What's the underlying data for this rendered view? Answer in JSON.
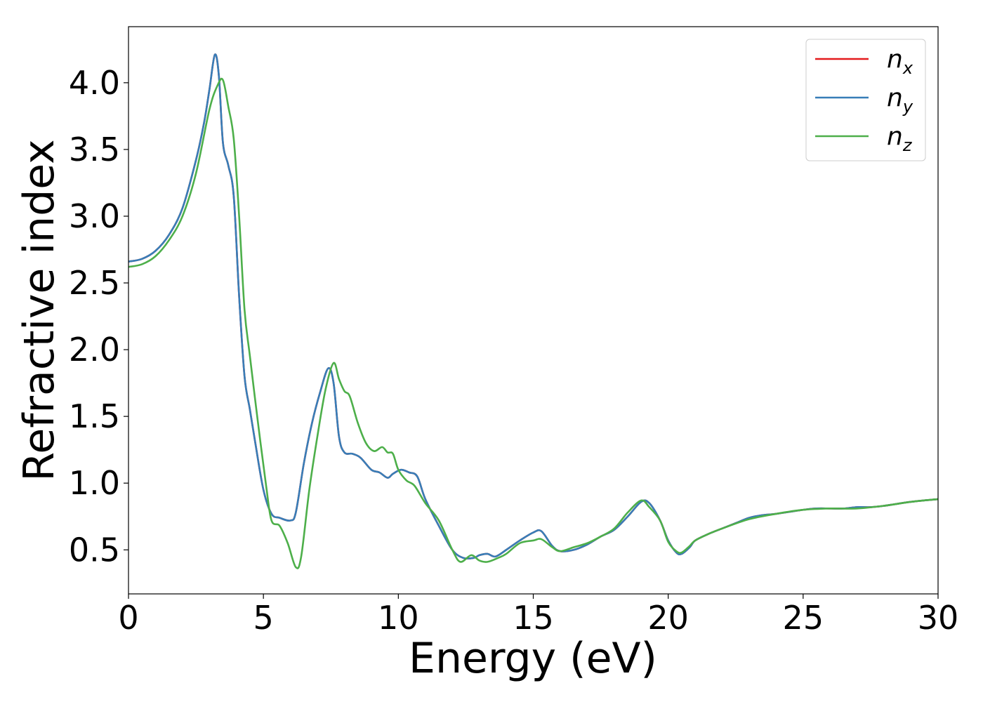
{
  "chart_data": {
    "type": "line",
    "title": "",
    "xlabel": "Energy (eV)",
    "ylabel": "Refractive index",
    "xlim": [
      0,
      30
    ],
    "ylim": [
      0.17,
      4.42
    ],
    "xticks": [
      0,
      5,
      10,
      15,
      20,
      25,
      30
    ],
    "yticks": [
      0.5,
      1.0,
      1.5,
      2.0,
      2.5,
      3.0,
      3.5,
      4.0
    ],
    "xtick_labels": [
      "0",
      "5",
      "10",
      "15",
      "20",
      "25",
      "30"
    ],
    "ytick_labels": [
      "0.5",
      "1.0",
      "1.5",
      "2.0",
      "2.5",
      "3.0",
      "3.5",
      "4.0"
    ],
    "grid": false,
    "legend_position": "top-right",
    "series": [
      {
        "name": "n_x",
        "label_base": "n",
        "label_sub": "x",
        "color": "#e41a1c",
        "x": [
          0,
          0.5,
          1,
          1.5,
          2,
          2.5,
          2.8,
          3,
          3.2,
          3.35,
          3.5,
          3.7,
          3.9,
          4.1,
          4.3,
          4.5,
          4.7,
          5,
          5.3,
          5.6,
          6,
          6.2,
          6.5,
          6.8,
          7.1,
          7.4,
          7.6,
          7.8,
          8,
          8.3,
          8.6,
          9,
          9.3,
          9.6,
          9.8,
          10.1,
          10.4,
          10.7,
          11,
          11.5,
          12,
          12.4,
          12.8,
          13,
          13.3,
          13.6,
          14,
          14.5,
          15,
          15.3,
          15.7,
          16,
          16.5,
          17,
          17.5,
          18,
          18.5,
          19,
          19.3,
          19.7,
          20,
          20.3,
          20.5,
          20.8,
          21,
          21.5,
          22,
          22.5,
          23,
          23.5,
          24,
          25,
          25.5,
          26,
          26.5,
          27,
          27.5,
          28,
          29,
          30
        ],
        "y": [
          2.66,
          2.68,
          2.74,
          2.86,
          3.06,
          3.42,
          3.7,
          3.95,
          4.21,
          4.05,
          3.55,
          3.38,
          3.15,
          2.4,
          1.8,
          1.55,
          1.3,
          0.95,
          0.77,
          0.74,
          0.72,
          0.78,
          1.15,
          1.45,
          1.68,
          1.86,
          1.75,
          1.35,
          1.23,
          1.22,
          1.19,
          1.1,
          1.08,
          1.04,
          1.07,
          1.1,
          1.08,
          1.05,
          0.88,
          0.68,
          0.5,
          0.44,
          0.44,
          0.46,
          0.47,
          0.45,
          0.5,
          0.57,
          0.63,
          0.64,
          0.53,
          0.49,
          0.5,
          0.54,
          0.6,
          0.65,
          0.75,
          0.86,
          0.85,
          0.72,
          0.57,
          0.48,
          0.47,
          0.52,
          0.57,
          0.62,
          0.66,
          0.7,
          0.74,
          0.76,
          0.77,
          0.8,
          0.81,
          0.81,
          0.81,
          0.82,
          0.82,
          0.83,
          0.86,
          0.88
        ]
      },
      {
        "name": "n_y",
        "label_base": "n",
        "label_sub": "y",
        "color": "#377eb8",
        "x": [
          0,
          0.5,
          1,
          1.5,
          2,
          2.5,
          2.8,
          3,
          3.2,
          3.35,
          3.5,
          3.7,
          3.9,
          4.1,
          4.3,
          4.5,
          4.7,
          5,
          5.3,
          5.6,
          6,
          6.2,
          6.5,
          6.8,
          7.1,
          7.4,
          7.6,
          7.8,
          8,
          8.3,
          8.6,
          9,
          9.3,
          9.6,
          9.8,
          10.1,
          10.4,
          10.7,
          11,
          11.5,
          12,
          12.4,
          12.8,
          13,
          13.3,
          13.6,
          14,
          14.5,
          15,
          15.3,
          15.7,
          16,
          16.5,
          17,
          17.5,
          18,
          18.5,
          19,
          19.3,
          19.7,
          20,
          20.3,
          20.5,
          20.8,
          21,
          21.5,
          22,
          22.5,
          23,
          23.5,
          24,
          25,
          25.5,
          26,
          26.5,
          27,
          27.5,
          28,
          29,
          30
        ],
        "y": [
          2.66,
          2.68,
          2.74,
          2.86,
          3.06,
          3.42,
          3.7,
          3.95,
          4.21,
          4.05,
          3.55,
          3.38,
          3.15,
          2.4,
          1.8,
          1.55,
          1.3,
          0.95,
          0.77,
          0.74,
          0.72,
          0.78,
          1.15,
          1.45,
          1.68,
          1.86,
          1.75,
          1.35,
          1.23,
          1.22,
          1.19,
          1.1,
          1.08,
          1.04,
          1.07,
          1.1,
          1.08,
          1.05,
          0.88,
          0.68,
          0.5,
          0.44,
          0.44,
          0.46,
          0.47,
          0.45,
          0.5,
          0.57,
          0.63,
          0.64,
          0.53,
          0.49,
          0.5,
          0.54,
          0.6,
          0.65,
          0.75,
          0.86,
          0.85,
          0.72,
          0.57,
          0.48,
          0.47,
          0.52,
          0.57,
          0.62,
          0.66,
          0.7,
          0.74,
          0.76,
          0.77,
          0.8,
          0.81,
          0.81,
          0.81,
          0.82,
          0.82,
          0.83,
          0.86,
          0.88
        ]
      },
      {
        "name": "n_z",
        "label_base": "n",
        "label_sub": "z",
        "color": "#4daf4a",
        "x": [
          0,
          0.5,
          1,
          1.5,
          2,
          2.5,
          3,
          3.3,
          3.5,
          3.7,
          3.9,
          4.1,
          4.3,
          4.5,
          4.8,
          5.1,
          5.3,
          5.6,
          5.9,
          6.2,
          6.4,
          6.7,
          7,
          7.3,
          7.6,
          7.8,
          8,
          8.2,
          8.5,
          8.8,
          9.1,
          9.4,
          9.6,
          9.8,
          10,
          10.3,
          10.6,
          11,
          11.5,
          12,
          12.3,
          12.7,
          13,
          13.3,
          13.7,
          14,
          14.5,
          15,
          15.3,
          15.7,
          16,
          16.5,
          17,
          17.5,
          18,
          18.5,
          19,
          19.3,
          19.7,
          20,
          20.3,
          20.5,
          20.8,
          21,
          21.5,
          22,
          23,
          24,
          25,
          26,
          27,
          28,
          29,
          30
        ],
        "y": [
          2.62,
          2.64,
          2.7,
          2.82,
          3.0,
          3.32,
          3.8,
          3.98,
          4.02,
          3.82,
          3.58,
          3.0,
          2.3,
          1.95,
          1.45,
          0.98,
          0.72,
          0.68,
          0.55,
          0.37,
          0.45,
          0.95,
          1.35,
          1.7,
          1.9,
          1.78,
          1.69,
          1.65,
          1.45,
          1.3,
          1.24,
          1.27,
          1.23,
          1.22,
          1.1,
          1.02,
          0.98,
          0.85,
          0.72,
          0.5,
          0.41,
          0.46,
          0.42,
          0.41,
          0.44,
          0.47,
          0.55,
          0.57,
          0.58,
          0.52,
          0.49,
          0.52,
          0.55,
          0.6,
          0.66,
          0.78,
          0.87,
          0.82,
          0.72,
          0.56,
          0.49,
          0.48,
          0.53,
          0.57,
          0.62,
          0.66,
          0.73,
          0.77,
          0.8,
          0.81,
          0.81,
          0.83,
          0.86,
          0.88
        ]
      }
    ]
  }
}
